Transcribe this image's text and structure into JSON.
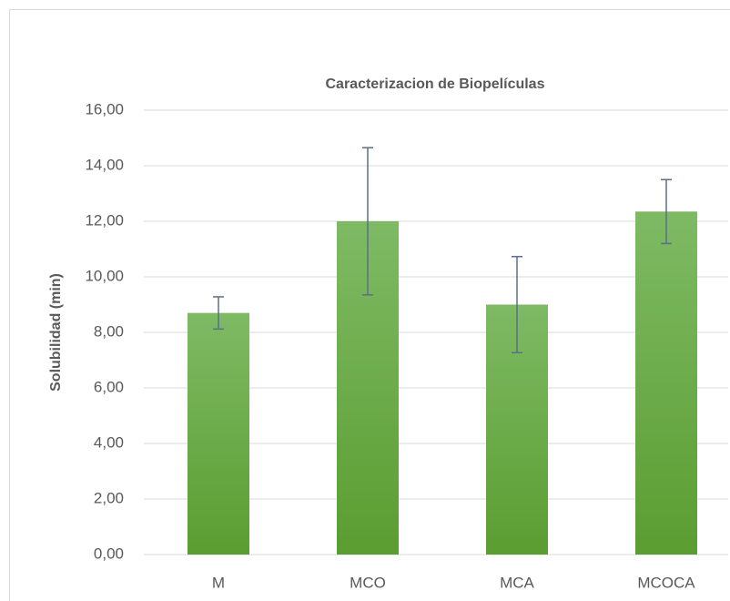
{
  "chart_data": {
    "type": "bar",
    "title": "Caracterizacion de Biopelículas",
    "ylabel": "Solubilidad (min)",
    "categories": [
      "M",
      "MCO",
      "MCA",
      "MCOCA"
    ],
    "values": [
      8.7,
      12.0,
      9.0,
      12.35
    ],
    "errors": [
      0.58,
      2.65,
      1.73,
      1.15
    ],
    "color": "#6aab45",
    "error_color": "#5a6f8a",
    "ylim": [
      0,
      16
    ],
    "yticks": [
      {
        "value": 0,
        "label": "0,00"
      },
      {
        "value": 2,
        "label": "2,00"
      },
      {
        "value": 4,
        "label": "4,00"
      },
      {
        "value": 6,
        "label": "6,00"
      },
      {
        "value": 8,
        "label": "8,00"
      },
      {
        "value": 10,
        "label": "10,00"
      },
      {
        "value": 12,
        "label": "12,00"
      },
      {
        "value": 14,
        "label": "14,00"
      },
      {
        "value": 16,
        "label": "16,00"
      }
    ],
    "grid": true
  }
}
